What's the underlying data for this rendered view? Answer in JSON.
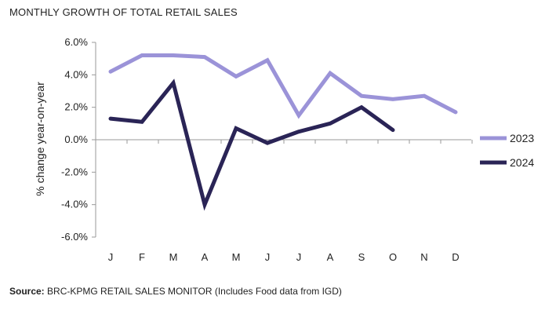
{
  "title": "MONTHLY GROWTH OF TOTAL RETAIL SALES",
  "source": {
    "label": "Source:",
    "text": " BRC-KPMG RETAIL SALES MONITOR (Includes Food data from IGD)"
  },
  "chart_data": {
    "type": "line",
    "title": "MONTHLY GROWTH OF TOTAL RETAIL SALES",
    "ylabel": "% change year-on-year",
    "xlabel": "",
    "categories": [
      "J",
      "F",
      "M",
      "A",
      "M",
      "J",
      "J",
      "A",
      "S",
      "O",
      "N",
      "D"
    ],
    "ylim": [
      -6,
      6
    ],
    "yticks": [
      6,
      4,
      2,
      0,
      -2,
      -4,
      -6
    ],
    "ytick_labels": [
      "6.0%",
      "4.0%",
      "2.0%",
      "0.0%",
      "-2.0%",
      "-4.0%",
      "-6.0%"
    ],
    "legend_position": "right",
    "grid": false,
    "series": [
      {
        "name": "2023",
        "color": "#9b93d8",
        "values": [
          4.2,
          5.2,
          5.2,
          5.1,
          3.9,
          4.9,
          1.5,
          4.1,
          2.7,
          2.5,
          2.7,
          1.7
        ]
      },
      {
        "name": "2024",
        "color": "#2a2456",
        "values": [
          1.3,
          1.1,
          3.5,
          -4.0,
          0.7,
          -0.2,
          0.5,
          1.0,
          2.0,
          0.6,
          null,
          null
        ]
      }
    ]
  }
}
